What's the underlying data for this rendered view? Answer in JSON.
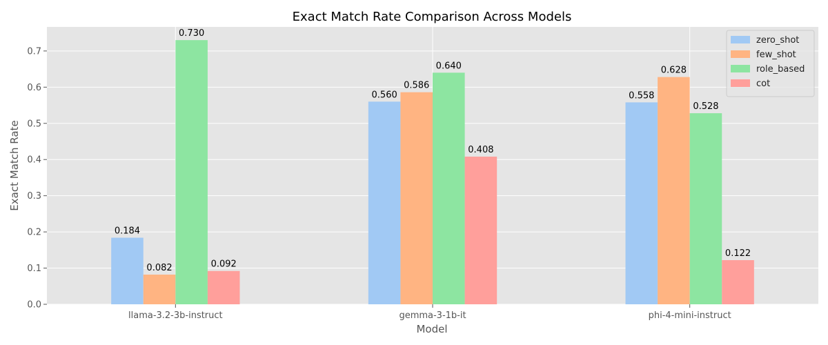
{
  "chart_data": {
    "type": "bar",
    "title": "Exact Match Rate Comparison Across Models",
    "xlabel": "Model",
    "ylabel": "Exact Match Rate",
    "categories": [
      "llama-3.2-3b-instruct",
      "gemma-3-1b-it",
      "phi-4-mini-instruct"
    ],
    "series": [
      {
        "name": "zero_shot",
        "color": "#a1c9f4",
        "values": [
          0.184,
          0.56,
          0.558
        ],
        "labels": [
          "0.184",
          "0.560",
          "0.558"
        ]
      },
      {
        "name": "few_shot",
        "color": "#ffb482",
        "values": [
          0.082,
          0.586,
          0.628
        ],
        "labels": [
          "0.082",
          "0.586",
          "0.628"
        ]
      },
      {
        "name": "role_based",
        "color": "#8de5a1",
        "values": [
          0.73,
          0.64,
          0.528
        ],
        "labels": [
          "0.730",
          "0.640",
          "0.528"
        ]
      },
      {
        "name": "cot",
        "color": "#ff9f9b",
        "values": [
          0.092,
          0.408,
          0.122
        ],
        "labels": [
          "0.092",
          "0.408",
          "0.122"
        ]
      }
    ],
    "ylim": [
      0,
      0.7665
    ],
    "yticks": [
      "0.0",
      "0.1",
      "0.2",
      "0.3",
      "0.4",
      "0.5",
      "0.6",
      "0.7"
    ],
    "grid": true,
    "legend_position": "top-right",
    "plot_background": "#e5e5e5"
  }
}
